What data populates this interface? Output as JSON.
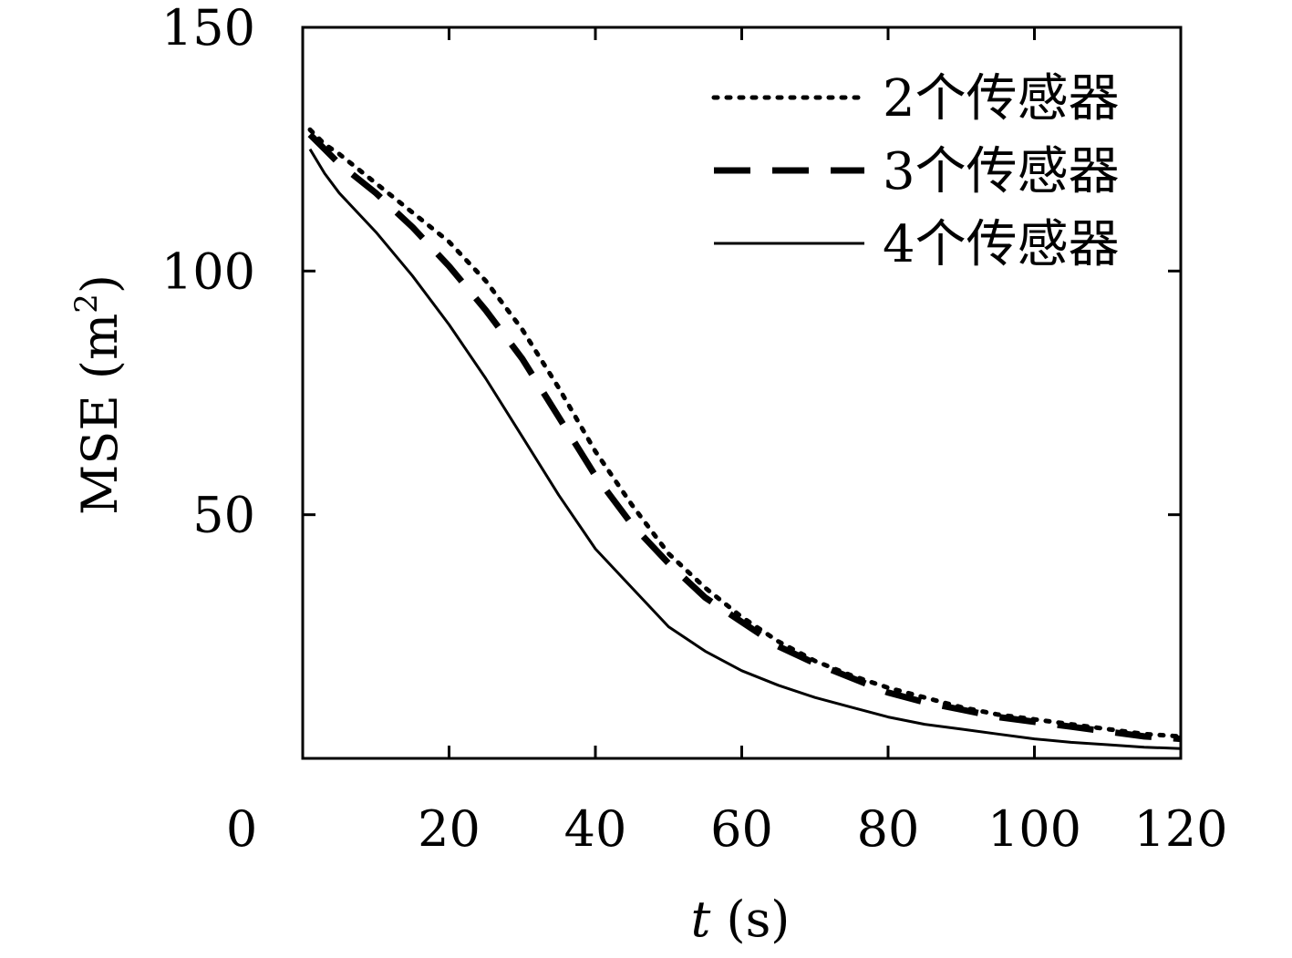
{
  "chart_data": {
    "type": "line",
    "title": "",
    "xlabel": "t (s)",
    "xlabel_var": "t",
    "xlabel_unit": " (s)",
    "ylabel": "MSE (m²)",
    "ylabel_main": "MSE (m",
    "ylabel_sup": "2",
    "ylabel_close": ")",
    "xlim": [
      0,
      120
    ],
    "ylim": [
      0,
      150
    ],
    "x_origin_label": "0",
    "xticks": [
      20,
      40,
      60,
      80,
      100,
      120
    ],
    "xtick_labels": [
      "20",
      "40",
      "60",
      "80",
      "100",
      "120"
    ],
    "yticks": [
      50,
      100,
      150
    ],
    "ytick_labels": [
      "50",
      "100",
      "150"
    ],
    "grid": false,
    "legend_position": "top-right",
    "series": [
      {
        "name": "2个传感器",
        "style": "dotted",
        "x": [
          1,
          3,
          5,
          10,
          15,
          20,
          25,
          30,
          35,
          40,
          45,
          50,
          55,
          60,
          65,
          70,
          75,
          80,
          85,
          90,
          95,
          100,
          105,
          110,
          115,
          120
        ],
        "y": [
          129,
          126,
          124,
          118,
          112,
          106,
          98,
          88,
          76,
          63,
          52,
          42,
          35,
          29,
          24,
          20,
          17,
          14.5,
          12.5,
          10.5,
          9,
          8,
          7,
          6,
          5,
          4.5
        ]
      },
      {
        "name": "3个传感器",
        "style": "dashed",
        "x": [
          1,
          3,
          5,
          10,
          15,
          20,
          25,
          30,
          35,
          40,
          45,
          50,
          55,
          60,
          65,
          70,
          75,
          80,
          85,
          90,
          95,
          100,
          105,
          110,
          115,
          120
        ],
        "y": [
          128,
          125,
          122,
          116,
          109,
          101,
          92,
          82,
          70,
          58,
          48,
          40,
          33,
          28,
          23,
          19.5,
          16.5,
          13.5,
          11.5,
          10,
          8.5,
          7.5,
          6.5,
          5.5,
          4.5,
          4
        ]
      },
      {
        "name": "4个传感器",
        "style": "solid",
        "x": [
          1,
          3,
          5,
          10,
          15,
          20,
          25,
          30,
          35,
          40,
          45,
          50,
          55,
          60,
          65,
          70,
          75,
          80,
          85,
          90,
          95,
          100,
          105,
          110,
          115,
          120
        ],
        "y": [
          125,
          120,
          116,
          108,
          99,
          89,
          78,
          66,
          54,
          43,
          35,
          27,
          22,
          18,
          15,
          12.5,
          10.5,
          8.5,
          7,
          6,
          5,
          4,
          3.3,
          2.8,
          2.3,
          2
        ]
      }
    ]
  }
}
